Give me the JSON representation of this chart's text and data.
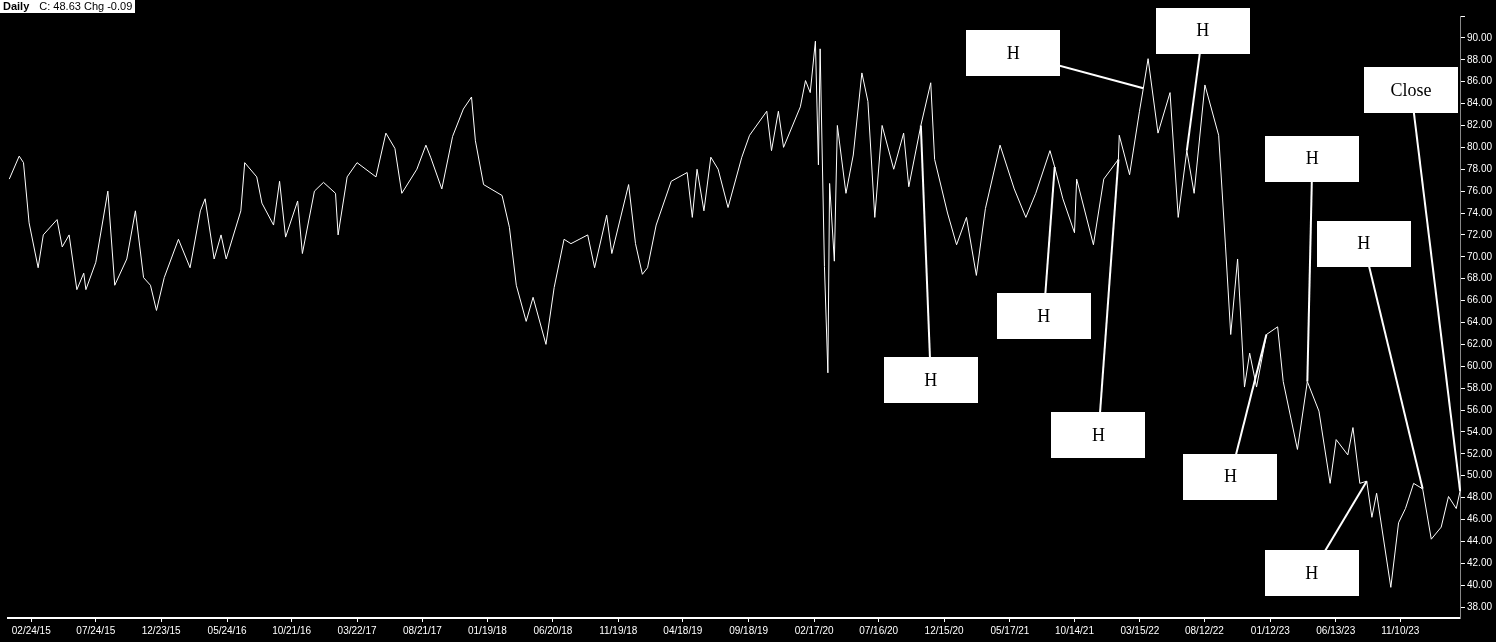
{
  "chart_data": {
    "type": "line",
    "title": "Daily",
    "subtitle": "C: 48.63 Chg -0.09",
    "x": [
      "2015-01-04",
      "2015-01-27",
      "2015-02-06",
      "2015-02-19",
      "2015-03-12",
      "2015-03-24",
      "2015-04-25",
      "2015-05-07",
      "2015-05-23",
      "2015-06-10",
      "2015-06-26",
      "2015-07-01",
      "2015-07-24",
      "2015-08-21",
      "2015-09-06",
      "2015-10-04",
      "2015-10-24",
      "2015-11-12",
      "2015-11-28",
      "2015-12-12",
      "2015-12-30",
      "2016-02-01",
      "2016-02-28",
      "2016-03-23",
      "2016-04-03",
      "2016-04-24",
      "2016-05-10",
      "2016-05-22",
      "2016-06-25",
      "2016-07-04",
      "2016-08-01",
      "2016-08-13",
      "2016-09-09",
      "2016-09-23",
      "2016-10-07",
      "2016-11-04",
      "2016-11-15",
      "2016-12-13",
      "2017-01-03",
      "2017-01-31",
      "2017-02-06",
      "2017-02-27",
      "2017-03-22",
      "2017-05-05",
      "2017-05-28",
      "2017-06-18",
      "2017-07-04",
      "2017-08-08",
      "2017-08-29",
      "2017-09-09",
      "2017-10-05",
      "2017-10-30",
      "2017-11-24",
      "2017-12-13",
      "2017-12-22",
      "2018-01-10",
      "2018-02-22",
      "2018-03-11",
      "2018-03-27",
      "2018-04-19",
      "2018-05-05",
      "2018-06-04",
      "2018-06-23",
      "2018-07-16",
      "2018-08-01",
      "2018-09-09",
      "2018-09-25",
      "2018-10-23",
      "2018-11-04",
      "2018-12-13",
      "2018-12-29",
      "2019-01-14",
      "2019-01-26",
      "2019-02-15",
      "2019-03-22",
      "2019-04-28",
      "2019-05-10",
      "2019-05-21",
      "2019-06-06",
      "2019-06-22",
      "2019-07-09",
      "2019-08-01",
      "2019-09-02",
      "2019-09-20",
      "2019-10-30",
      "2019-11-10",
      "2019-11-26",
      "2019-12-08",
      "2020-01-16",
      "2020-01-28",
      "2020-02-08",
      "2020-02-20",
      "2020-02-27",
      "2020-03-02",
      "2020-03-12",
      "2020-03-20",
      "2020-03-24",
      "2020-04-04",
      "2020-04-11",
      "2020-05-01",
      "2020-05-18",
      "2020-06-07",
      "2020-06-21",
      "2020-07-07",
      "2020-07-24",
      "2020-08-20",
      "2020-09-12",
      "2020-09-24",
      "2020-10-22",
      "2020-11-14",
      "2020-11-23",
      "2020-12-23",
      "2021-01-13",
      "2021-02-05",
      "2021-02-28",
      "2021-03-21",
      "2021-04-24",
      "2021-05-27",
      "2021-06-23",
      "2021-07-16",
      "2021-08-18",
      "2021-08-29",
      "2021-09-17",
      "2021-10-14",
      "2021-10-19",
      "2021-11-27",
      "2021-12-21",
      "2022-01-24",
      "2022-01-26",
      "2022-02-19",
      "2022-03-14",
      "2022-03-23",
      "2022-04-03",
      "2022-04-26",
      "2022-05-24",
      "2022-06-12",
      "2022-07-02",
      "2022-07-19",
      "2022-08-13",
      "2022-09-14",
      "2022-09-30",
      "2022-10-12",
      "2022-10-28",
      "2022-11-13",
      "2022-11-25",
      "2022-12-11",
      "2023-01-03",
      "2023-01-29",
      "2023-02-11",
      "2023-03-16",
      "2023-04-08",
      "2023-05-05",
      "2023-05-31",
      "2023-06-14",
      "2023-07-11",
      "2023-07-23",
      "2023-08-08",
      "2023-08-24",
      "2023-09-05",
      "2023-09-16",
      "2023-10-19",
      "2023-11-06",
      "2023-11-22",
      "2023-12-11",
      "2024-01-01",
      "2024-01-21",
      "2024-02-13",
      "2024-03-01",
      "2024-03-19",
      "2024-03-28"
    ],
    "series": [
      {
        "color": "#ffffff",
        "values": [
          77.1,
          79.2,
          78.6,
          73.1,
          69.0,
          72.0,
          73.4,
          70.9,
          72.0,
          67.0,
          68.5,
          67.0,
          69.5,
          76.0,
          67.4,
          69.8,
          74.2,
          68.1,
          67.4,
          65.1,
          68.1,
          71.6,
          69.0,
          74.2,
          75.3,
          69.8,
          72.0,
          69.8,
          74.2,
          78.6,
          77.3,
          74.9,
          72.9,
          76.9,
          71.8,
          75.1,
          70.3,
          76.0,
          76.8,
          75.8,
          72.0,
          77.3,
          78.6,
          77.3,
          81.3,
          79.9,
          75.8,
          78.0,
          80.2,
          79.1,
          76.2,
          81.0,
          83.5,
          84.6,
          80.6,
          76.6,
          75.6,
          72.7,
          67.4,
          64.1,
          66.3,
          62.0,
          67.2,
          71.6,
          71.2,
          72.0,
          69.0,
          73.8,
          70.3,
          76.6,
          71.2,
          68.4,
          69.0,
          72.9,
          76.9,
          77.7,
          73.6,
          78.0,
          74.2,
          79.1,
          78.0,
          74.5,
          79.1,
          81.1,
          83.3,
          79.7,
          83.3,
          80.0,
          83.7,
          86.1,
          85.0,
          89.7,
          78.4,
          89.0,
          69.1,
          59.4,
          76.7,
          69.6,
          82.0,
          75.8,
          79.3,
          86.8,
          84.2,
          73.6,
          82.0,
          78.0,
          81.3,
          76.4,
          82.0,
          85.9,
          78.9,
          74.0,
          71.1,
          73.6,
          68.3,
          74.4,
          80.2,
          76.2,
          73.6,
          75.8,
          79.7,
          78.2,
          75.3,
          72.2,
          77.1,
          71.1,
          77.1,
          78.9,
          81.1,
          77.5,
          83.3,
          85.4,
          88.1,
          81.3,
          85.0,
          73.6,
          79.7,
          75.8,
          85.7,
          81.1,
          70.9,
          62.9,
          69.8,
          58.1,
          61.2,
          58.1,
          62.9,
          63.6,
          58.6,
          52.4,
          58.6,
          55.9,
          49.3,
          53.3,
          51.9,
          54.4,
          49.3,
          49.5,
          46.2,
          48.4,
          39.8,
          45.7,
          47.0,
          49.3,
          48.8,
          44.2,
          45.3,
          48.1,
          47.0,
          48.6
        ]
      }
    ],
    "xlim": [
      "2015-01-01",
      "2024-03-30"
    ],
    "xticks": [
      {
        "value": "2015-02-24",
        "label": "02/24/15"
      },
      {
        "value": "2015-07-24",
        "label": "07/24/15"
      },
      {
        "value": "2015-12-23",
        "label": "12/23/15"
      },
      {
        "value": "2016-05-24",
        "label": "05/24/16"
      },
      {
        "value": "2016-10-21",
        "label": "10/21/16"
      },
      {
        "value": "2017-03-22",
        "label": "03/22/17"
      },
      {
        "value": "2017-08-21",
        "label": "08/21/17"
      },
      {
        "value": "2018-01-19",
        "label": "01/19/18"
      },
      {
        "value": "2018-06-20",
        "label": "06/20/18"
      },
      {
        "value": "2018-11-19",
        "label": "11/19/18"
      },
      {
        "value": "2019-04-18",
        "label": "04/18/19"
      },
      {
        "value": "2019-09-18",
        "label": "09/18/19"
      },
      {
        "value": "2020-02-17",
        "label": "02/17/20"
      },
      {
        "value": "2020-07-16",
        "label": "07/16/20"
      },
      {
        "value": "2020-12-15",
        "label": "12/15/20"
      },
      {
        "value": "2021-05-17",
        "label": "05/17/21"
      },
      {
        "value": "2021-10-14",
        "label": "10/14/21"
      },
      {
        "value": "2022-03-15",
        "label": "03/15/22"
      },
      {
        "value": "2022-08-12",
        "label": "08/12/22"
      },
      {
        "value": "2023-01-12",
        "label": "01/12/23"
      },
      {
        "value": "2023-06-13",
        "label": "06/13/23"
      },
      {
        "value": "2023-11-10",
        "label": "11/10/23"
      }
    ],
    "ylim": [
      37,
      92
    ],
    "yticks": [
      {
        "value": 38,
        "label": "38.00"
      },
      {
        "value": 40,
        "label": "40.00"
      },
      {
        "value": 42,
        "label": "42.00"
      },
      {
        "value": 44,
        "label": "44.00"
      },
      {
        "value": 46,
        "label": "46.00"
      },
      {
        "value": 48,
        "label": "48.00"
      },
      {
        "value": 50,
        "label": "50.00"
      },
      {
        "value": 52,
        "label": "52.00"
      },
      {
        "value": 54,
        "label": "54.00"
      },
      {
        "value": 56,
        "label": "56.00"
      },
      {
        "value": 58,
        "label": "58.00"
      },
      {
        "value": 60,
        "label": "60.00"
      },
      {
        "value": 62,
        "label": "62.00"
      },
      {
        "value": 64,
        "label": "64.00"
      },
      {
        "value": 66,
        "label": "66.00"
      },
      {
        "value": 68,
        "label": "68.00"
      },
      {
        "value": 70,
        "label": "70.00"
      },
      {
        "value": 72,
        "label": "72.00"
      },
      {
        "value": 74,
        "label": "74.00"
      },
      {
        "value": 76,
        "label": "76.00"
      },
      {
        "value": 78,
        "label": "78.00"
      },
      {
        "value": 80,
        "label": "80.00"
      },
      {
        "value": 82,
        "label": "82.00"
      },
      {
        "value": 84,
        "label": "84.00"
      },
      {
        "value": 86,
        "label": "86.00"
      },
      {
        "value": 88,
        "label": "88.00"
      },
      {
        "value": 90,
        "label": "90.00"
      },
      {
        "value": 92,
        "label": null
      }
    ],
    "annotations": [
      {
        "text": "H",
        "x": "2020-10-22",
        "y": 82.0
      },
      {
        "text": "H",
        "x": "2022-03-23",
        "y": 85.4
      },
      {
        "text": "H",
        "x": "2022-07-02",
        "y": 79.7
      },
      {
        "text": "H",
        "x": "2021-08-29",
        "y": 78.2
      },
      {
        "text": "H",
        "x": "2022-01-24",
        "y": 78.9
      },
      {
        "text": "H",
        "x": "2023-04-08",
        "y": 58.6
      },
      {
        "text": "H",
        "x": "2023-01-03",
        "y": 62.9
      },
      {
        "text": "H",
        "x": "2024-01-01",
        "y": 48.8
      },
      {
        "text": "H",
        "x": "2023-08-24",
        "y": 49.5
      },
      {
        "text": "Close",
        "x": "2024-03-28",
        "y": 48.6
      }
    ],
    "grid": false,
    "legend": false
  }
}
